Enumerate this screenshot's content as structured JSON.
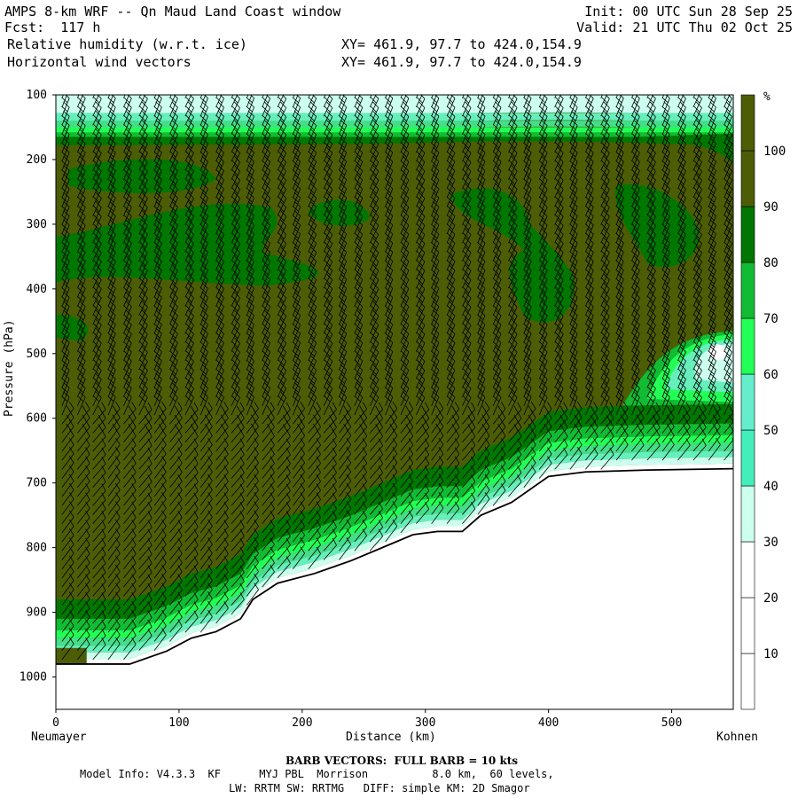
{
  "header": {
    "title": "AMPS 8-km WRF -- Qn Maud Land Coast window",
    "fcst": "Fcst:  117 h",
    "field1": "Relative humidity (w.r.t. ice)",
    "field2": "Horizontal wind vectors",
    "init": "Init: 00 UTC Sun 28 Sep 25",
    "valid": "Valid: 21 UTC Thu 02 Oct 25",
    "xy1": "XY= 461.9, 97.7 to 424.0,154.9",
    "xy2": "XY= 461.9, 97.7 to 424.0,154.9"
  },
  "footer": {
    "barb": "BARB VECTORS:  FULL BARB = 10 kts",
    "model": "Model Info: V4.3.3  KF      MYJ PBL  Morrison          8.0 km,  60 levels,",
    "physics": "LW: RRTM SW: RRTMG   DIFF: simple KM: 2D Smagor"
  },
  "colors": {
    "c0": "#ffffff",
    "c1": "#ffffff",
    "c2": "#ffffff",
    "c3": "#ccffee",
    "c4": "#66eebb",
    "c5": "#44dd88",
    "c6": "#22ff55",
    "c7": "#11bb33",
    "c8": "#007700",
    "c9": "#4c5d06",
    "terrain_line": "#000000"
  },
  "chart_data": {
    "type": "contour-cross-section",
    "title": "Relative humidity (w.r.t. ice) and horizontal wind vectors",
    "xlabel": "Distance (km)",
    "ylabel": "Pressure (hPa)",
    "xlim": [
      0,
      550
    ],
    "ylim": [
      1050,
      100
    ],
    "x_ticks": [
      "0",
      "100",
      "200",
      "300",
      "400",
      "500"
    ],
    "y_ticks": [
      "100",
      "200",
      "300",
      "400",
      "500",
      "600",
      "700",
      "800",
      "900",
      "1000"
    ],
    "x_tick_values": [
      0,
      100,
      200,
      300,
      400,
      500
    ],
    "y_tick_values": [
      100,
      200,
      300,
      400,
      500,
      600,
      700,
      800,
      900,
      1000
    ],
    "start_label": "Neumayer",
    "end_label": "Kohnen",
    "colorbar": {
      "unit": "%",
      "ticks": [
        "10",
        "20",
        "30",
        "40",
        "50",
        "60",
        "70",
        "80",
        "90",
        "100"
      ],
      "tick_values": [
        10,
        20,
        30,
        40,
        50,
        60,
        70,
        80,
        90,
        100
      ],
      "levels": [
        0,
        10,
        20,
        30,
        40,
        50,
        60,
        70,
        80,
        90,
        100,
        110
      ]
    },
    "terrain_surface": [
      {
        "x": 0,
        "p": 980
      },
      {
        "x": 60,
        "p": 980
      },
      {
        "x": 90,
        "p": 960
      },
      {
        "x": 110,
        "p": 940
      },
      {
        "x": 130,
        "p": 930
      },
      {
        "x": 150,
        "p": 910
      },
      {
        "x": 160,
        "p": 880
      },
      {
        "x": 180,
        "p": 855
      },
      {
        "x": 210,
        "p": 840
      },
      {
        "x": 240,
        "p": 820
      },
      {
        "x": 265,
        "p": 800
      },
      {
        "x": 290,
        "p": 780
      },
      {
        "x": 310,
        "p": 775
      },
      {
        "x": 330,
        "p": 775
      },
      {
        "x": 345,
        "p": 750
      },
      {
        "x": 370,
        "p": 730
      },
      {
        "x": 400,
        "p": 690
      },
      {
        "x": 430,
        "p": 683
      },
      {
        "x": 480,
        "p": 680
      },
      {
        "x": 550,
        "p": 678
      }
    ],
    "moist_top_p": 165,
    "upper_dry_layer_p": [
      100,
      160
    ],
    "surface_layer_rh": "drier (20-60%) in lowest ~60 hPa above terrain",
    "interior_rh": "mostly >100% with patches of 90-100%"
  }
}
